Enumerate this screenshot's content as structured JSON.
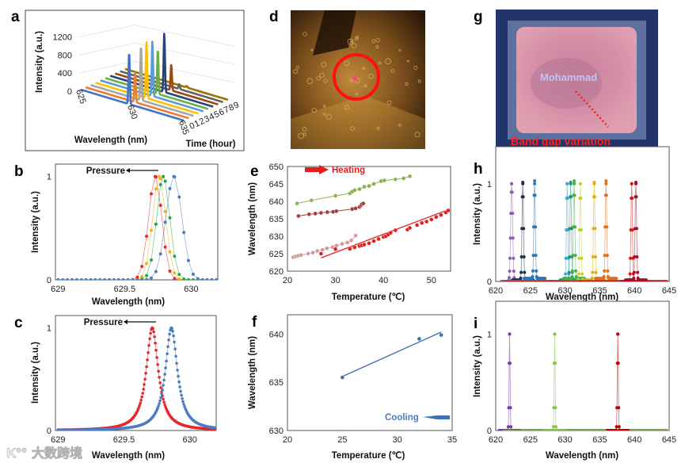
{
  "photos": [
    {
      "label": "d"
    },
    {
      "label": "g",
      "center_text": "Mohammad",
      "annotation": "Band gap variation"
    }
  ],
  "watermark": "大数跨境",
  "chart_data": [
    {
      "id": "a",
      "label": "a",
      "type": "line3d",
      "xlabel": "Wavelength (nm)",
      "ylabel": "Intensity (a.u.)",
      "zlabel": "Time (hour)",
      "xticks": [
        625,
        630,
        635
      ],
      "yticks": [
        0,
        400,
        800,
        1200
      ],
      "zticks": [
        0,
        1,
        2,
        3,
        4,
        5,
        6,
        7,
        8,
        9
      ],
      "xlim": [
        625,
        635
      ],
      "ylim": [
        0,
        1200
      ],
      "series": [
        {
          "time": 0,
          "peak_wavelength": 629.7,
          "peak_intensity": 1050,
          "color": "#4472c4"
        },
        {
          "time": 1,
          "peak_wavelength": 629.8,
          "peak_intensity": 600,
          "color": "#ed7d31"
        },
        {
          "time": 2,
          "peak_wavelength": 629.9,
          "peak_intensity": 1100,
          "color": "#a5a5a5"
        },
        {
          "time": 3,
          "peak_wavelength": 629.95,
          "peak_intensity": 1150,
          "color": "#ffc000"
        },
        {
          "time": 4,
          "peak_wavelength": 630.05,
          "peak_intensity": 1120,
          "color": "#5b9bd5"
        },
        {
          "time": 5,
          "peak_wavelength": 630.1,
          "peak_intensity": 900,
          "color": "#70ad47"
        },
        {
          "time": 6,
          "peak_wavelength": 630.25,
          "peak_intensity": 1200,
          "color": "#264478"
        },
        {
          "time": 7,
          "peak_wavelength": 630.45,
          "peak_intensity": 520,
          "color": "#9e480e"
        },
        {
          "time": 8,
          "peak_wavelength": 630.75,
          "peak_intensity": 100,
          "color": "#636363"
        },
        {
          "time": 9,
          "peak_wavelength": 631.0,
          "peak_intensity": 30,
          "color": "#997300"
        }
      ]
    },
    {
      "id": "b",
      "label": "b",
      "type": "scatter-line",
      "xlabel": "Wavelength (nm)",
      "ylabel": "Intensity (a.u.)",
      "xticks": [
        629,
        629.5,
        630
      ],
      "yticks": [
        0,
        1
      ],
      "xlim": [
        628.98,
        630.2
      ],
      "ylim": [
        0,
        1.12
      ],
      "annotation": "Pressure",
      "series": [
        {
          "name": "red",
          "peak_wavelength": 629.73,
          "width": 0.07,
          "color": "#e8262b"
        },
        {
          "name": "yellow",
          "peak_wavelength": 629.76,
          "width": 0.07,
          "color": "#f4b400"
        },
        {
          "name": "green",
          "peak_wavelength": 629.79,
          "width": 0.07,
          "color": "#1fa84a"
        },
        {
          "name": "blue",
          "peak_wavelength": 629.87,
          "width": 0.085,
          "color": "#4a7cc0"
        }
      ]
    },
    {
      "id": "c",
      "label": "c",
      "type": "scatter-line",
      "xlabel": "Wavelength (nm)",
      "ylabel": "Intensity (a.u.)",
      "xticks": [
        629,
        629.5,
        630
      ],
      "yticks": [
        0,
        1
      ],
      "xlim": [
        628.98,
        630.2
      ],
      "ylim": [
        0,
        1.12
      ],
      "annotation": "Pressure",
      "series": [
        {
          "name": "red",
          "peak_wavelength": 629.715,
          "width": 0.055,
          "color": "#e8262b"
        },
        {
          "name": "blue",
          "peak_wavelength": 629.86,
          "width": 0.055,
          "color": "#4a7cc0"
        }
      ]
    },
    {
      "id": "e",
      "label": "e",
      "type": "scatter",
      "xlabel": "Temperature (℃)",
      "ylabel": "Wavelength (nm)",
      "xticks": [
        20,
        30,
        40,
        50
      ],
      "yticks": [
        620,
        625,
        630,
        635,
        640,
        645,
        650
      ],
      "xlim": [
        20,
        54
      ],
      "ylim": [
        620,
        650
      ],
      "annotation": "Heating",
      "series": [
        {
          "name": "green",
          "color": "#8db04a",
          "connect": true,
          "points": [
            [
              22,
              639.4
            ],
            [
              25,
              640.3
            ],
            [
              30,
              641.6
            ],
            [
              33,
              642.3
            ],
            [
              33.5,
              642.8
            ],
            [
              34,
              643.2
            ],
            [
              35,
              643.5
            ],
            [
              36,
              644.2
            ],
            [
              37,
              644.4
            ],
            [
              38,
              645
            ],
            [
              39.5,
              645.8
            ],
            [
              40.2,
              646
            ],
            [
              42.5,
              646.3
            ],
            [
              44.2,
              646.6
            ],
            [
              45.5,
              647.2
            ]
          ]
        },
        {
          "name": "dark-red",
          "color": "#a83a3a",
          "connect": true,
          "points": [
            [
              22.3,
              635.8
            ],
            [
              24.5,
              636.3
            ],
            [
              25.8,
              636.5
            ],
            [
              27,
              636.7
            ],
            [
              28.3,
              636.9
            ],
            [
              29.5,
              637
            ],
            [
              30.2,
              637.2
            ],
            [
              33.5,
              637.8
            ],
            [
              34.2,
              638
            ],
            [
              35,
              638.4
            ],
            [
              35.3,
              638.8
            ],
            [
              35.5,
              639.2
            ],
            [
              35.8,
              639.4
            ]
          ]
        },
        {
          "name": "pink",
          "color": "#d49a9a",
          "connect": true,
          "points": [
            [
              21.2,
              624
            ],
            [
              21.7,
              624.2
            ],
            [
              22.2,
              624.4
            ],
            [
              22.8,
              624.6
            ],
            [
              24.3,
              625
            ],
            [
              25.3,
              625.3
            ],
            [
              26.2,
              625.8
            ],
            [
              27.3,
              626.1
            ],
            [
              28.2,
              626.5
            ],
            [
              29.4,
              626.9
            ],
            [
              30.2,
              627.3
            ],
            [
              31.4,
              627.8
            ],
            [
              32.5,
              628.2
            ],
            [
              33.3,
              628.8
            ],
            [
              34.2,
              630.2
            ]
          ]
        },
        {
          "name": "red",
          "color": "#e02020",
          "connect": false,
          "trend": [
            [
              27,
              623.8
            ],
            [
              53.5,
              637.6
            ]
          ],
          "points": [
            [
              27,
              625
            ],
            [
              30,
              626.3
            ],
            [
              33,
              626.4
            ],
            [
              34,
              626.8
            ],
            [
              35,
              627.2
            ],
            [
              35.5,
              627.4
            ],
            [
              36,
              627.6
            ],
            [
              37,
              628
            ],
            [
              38,
              628.6
            ],
            [
              39,
              629.2
            ],
            [
              40,
              629.8
            ],
            [
              40.5,
              630
            ],
            [
              41,
              630.5
            ],
            [
              41.5,
              631
            ],
            [
              42.5,
              631.7
            ],
            [
              45,
              631.9
            ],
            [
              45.5,
              632.4
            ],
            [
              47,
              633.2
            ],
            [
              48,
              633.8
            ],
            [
              49,
              634.2
            ],
            [
              50,
              634.8
            ],
            [
              51,
              635.5
            ],
            [
              52,
              636.1
            ],
            [
              53,
              636.8
            ],
            [
              53.5,
              637.4
            ]
          ]
        }
      ]
    },
    {
      "id": "f",
      "label": "f",
      "type": "scatter",
      "xlabel": "Temperature (℃)",
      "ylabel": "Wavelength (nm)",
      "xticks": [
        20,
        25,
        30,
        35
      ],
      "yticks": [
        630,
        635,
        640
      ],
      "xlim": [
        20,
        35
      ],
      "ylim": [
        630,
        642
      ],
      "annotation": "Cooling",
      "series": [
        {
          "name": "blue",
          "color": "#3f6fb0",
          "connect": false,
          "trend": [
            [
              25,
              635.6
            ],
            [
              34,
              640.2
            ]
          ],
          "points": [
            [
              25,
              635.5
            ],
            [
              32,
              639.5
            ],
            [
              34,
              639.9
            ]
          ]
        }
      ]
    },
    {
      "id": "h",
      "label": "h",
      "type": "scatter-line",
      "xlabel": "Wavelength (nm)",
      "ylabel": "Intensity (a.u.)",
      "xticks": [
        620,
        625,
        630,
        635,
        640,
        645
      ],
      "yticks": [
        0,
        1
      ],
      "xlim": [
        620,
        645
      ],
      "ylim": [
        0,
        1.38
      ],
      "series": [
        {
          "peak_wavelength": 622.3,
          "width": 0.2,
          "color": "#8e5bb8"
        },
        {
          "peak_wavelength": 623.9,
          "width": 0.15,
          "color": "#1f2f4f"
        },
        {
          "peak_wavelength": 625.6,
          "width": 0.15,
          "color": "#2a78b8"
        },
        {
          "peak_wavelength": 630.3,
          "width": 0.15,
          "color": "#3aa6d8"
        },
        {
          "peak_wavelength": 630.8,
          "width": 0.15,
          "color": "#1a9a6a"
        },
        {
          "peak_wavelength": 631.3,
          "width": 0.15,
          "color": "#46b04a"
        },
        {
          "peak_wavelength": 632.2,
          "width": 0.15,
          "color": "#c8d030"
        },
        {
          "peak_wavelength": 634.2,
          "width": 0.15,
          "color": "#e0b010"
        },
        {
          "peak_wavelength": 635.9,
          "width": 0.15,
          "color": "#e07020"
        },
        {
          "peak_wavelength": 639.6,
          "width": 0.15,
          "color": "#d21a1a"
        },
        {
          "peak_wavelength": 640.2,
          "width": 0.15,
          "color": "#a8102a"
        }
      ]
    },
    {
      "id": "i",
      "label": "i",
      "type": "scatter-line",
      "xlabel": "Wavelength (nm)",
      "ylabel": "Intensity (a.u.)",
      "xticks": [
        620,
        625,
        630,
        635,
        640,
        645
      ],
      "yticks": [
        0,
        1
      ],
      "xlim": [
        620,
        645
      ],
      "ylim": [
        0,
        1.34
      ],
      "series": [
        {
          "peak_wavelength": 622.0,
          "width": 0.1,
          "color": "#7a3aa8"
        },
        {
          "peak_wavelength": 628.5,
          "width": 0.1,
          "color": "#8bc34a"
        },
        {
          "peak_wavelength": 637.6,
          "width": 0.1,
          "color": "#c00000"
        }
      ]
    }
  ]
}
